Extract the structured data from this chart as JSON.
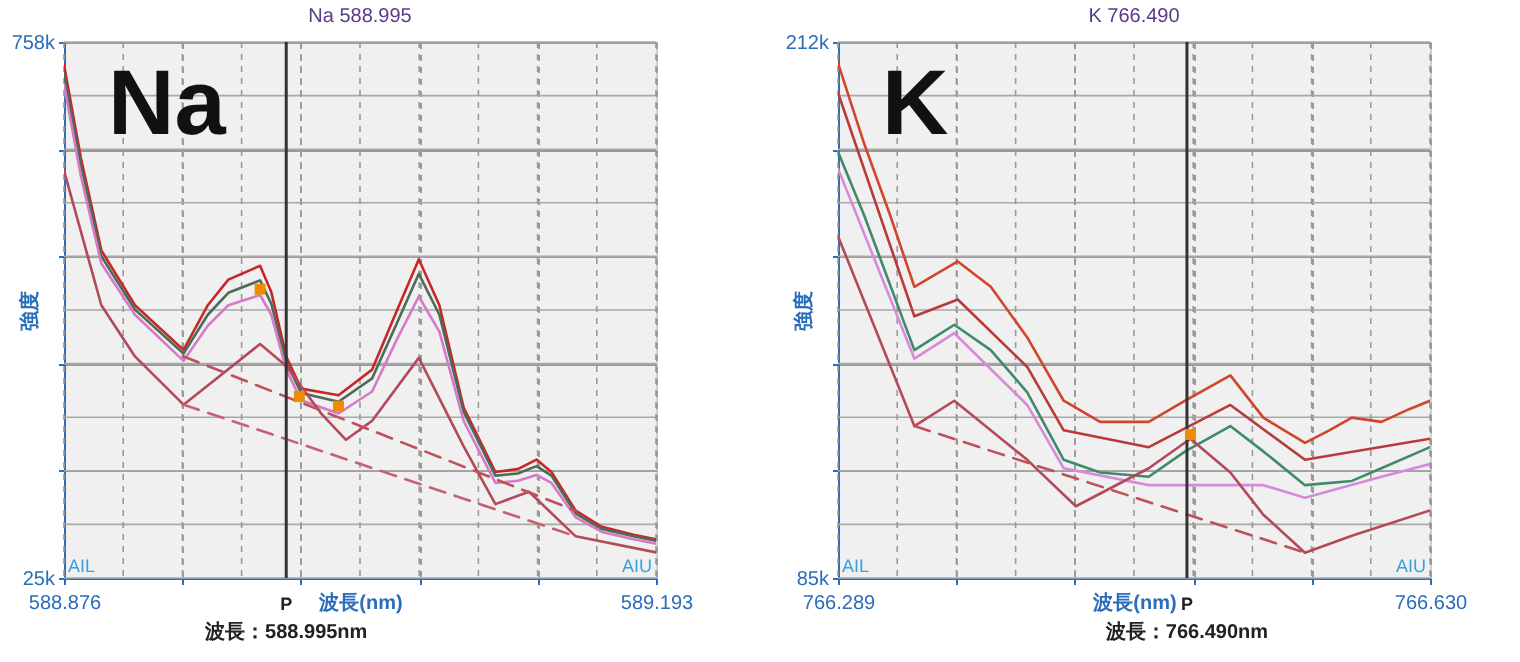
{
  "chart_data": [
    {
      "type": "line",
      "title": "Na 588.995",
      "xlabel": "波長(nm)",
      "ylabel": "強度",
      "annotations": [
        "Na",
        "AIL",
        "AIU",
        "波長：588.995nm"
      ],
      "xlim": [
        588.876,
        589.193
      ],
      "xticks": [
        588.876,
        {
          "value": 588.9077,
          "label": null
        },
        {
          "value": 588.9394,
          "label": null
        },
        {
          "value": 588.9711,
          "label": null
        },
        {
          "value": 589.0028,
          "label": null
        },
        {
          "value": 589.0345,
          "label": null
        },
        {
          "value": 589.0662,
          "label": null
        },
        {
          "value": 589.0979,
          "label": null
        },
        {
          "value": 589.1296,
          "label": null
        },
        {
          "value": 589.1613,
          "label": null
        },
        589.193
      ],
      "ylim": [
        25,
        758
      ],
      "yticks": [
        {
          "value": 25,
          "label": "25k"
        },
        {
          "value": 98.3,
          "label": null
        },
        {
          "value": 171.6,
          "label": null
        },
        {
          "value": 244.9,
          "label": null
        },
        {
          "value": 318.2,
          "label": null
        },
        {
          "value": 391.5,
          "label": null
        },
        {
          "value": 464.8,
          "label": null
        },
        {
          "value": 538.1,
          "label": null
        },
        {
          "value": 611.4,
          "label": null
        },
        {
          "value": 684.7,
          "label": null
        },
        {
          "value": 758,
          "label": "758k"
        }
      ],
      "grid": true,
      "line_style": "solid",
      "ref_lines": [
        {
          "axis": "x",
          "value": 588.995,
          "label": "P"
        }
      ],
      "series": [
        {
          "color": "#c62828",
          "x": [
            588.876,
            588.885,
            588.896,
            588.914,
            588.94,
            588.953,
            588.964,
            588.981,
            588.987,
            588.995,
            589.003,
            589.023,
            589.041,
            589.054,
            589.066,
            589.077,
            589.09,
            589.107,
            589.119,
            589.129,
            589.137,
            589.15,
            589.164,
            589.181,
            589.193
          ],
          "values": [
            727,
            600,
            473,
            398,
            337,
            398,
            433,
            452,
            416,
            328,
            284,
            275,
            310,
            389,
            461,
            398,
            258,
            170,
            174,
            187,
            170,
            117,
            95,
            84,
            78
          ]
        },
        {
          "color": "#4d6b5a",
          "x": [
            588.876,
            588.885,
            588.896,
            588.914,
            588.94,
            588.953,
            588.964,
            588.981,
            588.987,
            588.995,
            589.003,
            589.023,
            589.041,
            589.054,
            589.066,
            589.077,
            589.09,
            589.107,
            589.119,
            589.129,
            589.137,
            589.15,
            589.164,
            589.181,
            589.193
          ],
          "values": [
            715,
            590,
            465,
            392,
            332,
            385,
            415,
            432,
            400,
            320,
            278,
            266,
            298,
            372,
            441,
            385,
            252,
            165,
            168,
            178,
            165,
            113,
            92,
            82,
            76
          ]
        },
        {
          "color": "#d67ac8",
          "x": [
            588.876,
            588.885,
            588.896,
            588.914,
            588.94,
            588.953,
            588.964,
            588.981,
            588.987,
            588.995,
            589.003,
            589.023,
            589.041,
            589.054,
            589.066,
            589.077,
            589.09,
            589.107,
            589.119,
            589.129,
            589.137,
            589.15,
            589.164,
            589.181,
            589.193
          ],
          "values": [
            700,
            575,
            455,
            385,
            322,
            370,
            398,
            412,
            385,
            310,
            268,
            250,
            280,
            350,
            410,
            362,
            240,
            155,
            158,
            166,
            155,
            108,
            88,
            78,
            72
          ]
        },
        {
          "color": "#b24a5a",
          "x": [
            588.876,
            588.896,
            588.914,
            588.94,
            588.981,
            588.995,
            589.014,
            589.027,
            589.041,
            589.066,
            589.09,
            589.107,
            589.125,
            589.15,
            589.193
          ],
          "values": [
            582,
            398,
            328,
            262,
            345,
            315,
            249,
            214,
            240,
            326,
            205,
            126,
            143,
            82,
            60
          ]
        },
        {
          "color": "#c0505a",
          "line_style": "dashed",
          "x": [
            588.94,
            589.15
          ],
          "values": [
            328,
            117
          ]
        },
        {
          "color": "#c86070",
          "line_style": "dashed",
          "x": [
            588.94,
            589.15
          ],
          "values": [
            262,
            82
          ]
        },
        {
          "type": "scatter",
          "marker": "square",
          "color": "#f08c00",
          "x": [
            588.981,
            589.002,
            589.023
          ],
          "values": [
            420,
            273,
            260
          ]
        }
      ]
    },
    {
      "type": "line",
      "title": "K 766.490",
      "xlabel": "波長(nm)",
      "ylabel": "強度",
      "annotations": [
        "K",
        "AIL",
        "AIU",
        "波長：766.490nm"
      ],
      "xlim": [
        766.289,
        766.63
      ],
      "xticks": [
        766.289,
        {
          "value": 766.3231,
          "label": null
        },
        {
          "value": 766.3572,
          "label": null
        },
        {
          "value": 766.3913,
          "label": null
        },
        {
          "value": 766.4254,
          "label": null
        },
        {
          "value": 766.4595,
          "label": null
        },
        {
          "value": 766.4936,
          "label": null
        },
        {
          "value": 766.5277,
          "label": null
        },
        {
          "value": 766.5618,
          "label": null
        },
        {
          "value": 766.5959,
          "label": null
        },
        {
          "value": 766.63,
          "label": "766.630"
        }
      ],
      "ylim": [
        85,
        212
      ],
      "yticks": [
        {
          "value": 85,
          "label": "85k"
        },
        {
          "value": 97.7,
          "label": null
        },
        {
          "value": 110.4,
          "label": null
        },
        {
          "value": 123.1,
          "label": null
        },
        {
          "value": 135.8,
          "label": null
        },
        {
          "value": 148.5,
          "label": null
        },
        {
          "value": 161.2,
          "label": null
        },
        {
          "value": 173.9,
          "label": null
        },
        {
          "value": 186.6,
          "label": null
        },
        {
          "value": 199.3,
          "label": null
        },
        {
          "value": 212,
          "label": "212k"
        }
      ],
      "grid": true,
      "line_style": "solid",
      "ref_lines": [
        {
          "axis": "x",
          "value": 766.49,
          "label": "P"
        }
      ],
      "series": [
        {
          "color": "#d2452d",
          "x": [
            766.289,
            766.304,
            766.319,
            766.333,
            766.358,
            766.377,
            766.398,
            766.419,
            766.44,
            766.468,
            766.489,
            766.515,
            766.534,
            766.558,
            766.572,
            766.585,
            766.602,
            766.618,
            766.63
          ],
          "values": [
            207,
            188,
            171,
            154,
            160,
            154,
            142,
            127,
            122,
            122,
            127,
            133,
            123,
            117,
            120,
            123,
            122,
            125,
            127
          ]
        },
        {
          "color": "#b83a3a",
          "x": [
            766.289,
            766.333,
            766.358,
            766.398,
            766.419,
            766.468,
            766.515,
            766.558,
            766.63
          ],
          "values": [
            200,
            147,
            151,
            135,
            120,
            116,
            126,
            113,
            118
          ]
        },
        {
          "color": "#3f8a6a",
          "x": [
            766.289,
            766.304,
            766.333,
            766.356,
            766.377,
            766.398,
            766.419,
            766.44,
            766.468,
            766.489,
            766.515,
            766.534,
            766.558,
            766.585,
            766.602,
            766.63
          ],
          "values": [
            186,
            171,
            139,
            145,
            139,
            129,
            113,
            110,
            109,
            115,
            121,
            115,
            107,
            108,
            111,
            116
          ]
        },
        {
          "color": "#d88ad8",
          "x": [
            766.289,
            766.333,
            766.356,
            766.398,
            766.419,
            766.468,
            766.489,
            766.534,
            766.558,
            766.602,
            766.63
          ],
          "values": [
            182,
            137,
            143,
            126,
            111,
            107,
            107,
            107,
            104,
            109,
            112
          ]
        },
        {
          "color": "#b24a5a",
          "x": [
            766.289,
            766.333,
            766.356,
            766.398,
            766.426,
            766.468,
            766.492,
            766.515,
            766.534,
            766.558,
            766.585,
            766.63
          ],
          "values": [
            166,
            121,
            127,
            113,
            102,
            111,
            118,
            110,
            100,
            91,
            95,
            101
          ]
        },
        {
          "color": "#c0505a",
          "line_style": "dashed",
          "x": [
            766.333,
            766.558
          ],
          "values": [
            121,
            91
          ]
        },
        {
          "type": "scatter",
          "marker": "square",
          "color": "#f08c00",
          "x": [
            766.492
          ],
          "values": [
            119
          ]
        }
      ]
    }
  ]
}
